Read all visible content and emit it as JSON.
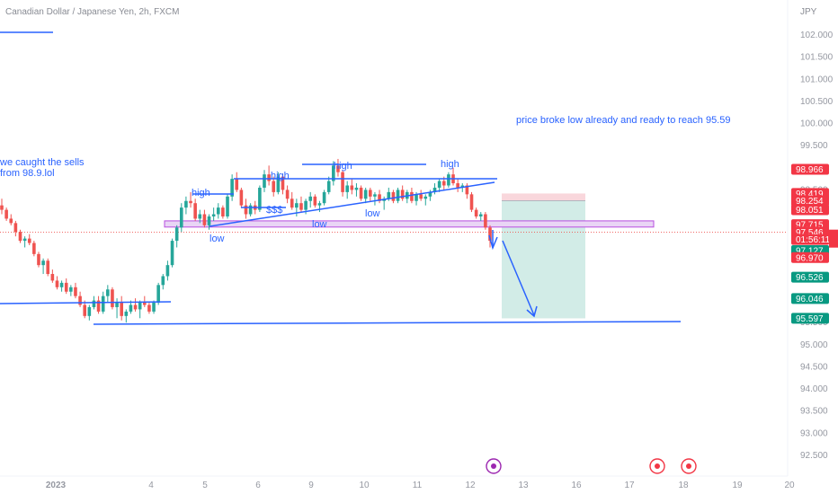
{
  "header": {
    "title": "Canadian Dollar / Japanese Yen, 2h, FXCM",
    "currency": "JPY"
  },
  "chart_data": {
    "type": "candlestick",
    "title": "Canadian Dollar / Japanese Yen, 2h, FXCM",
    "ylabel": "JPY",
    "ylim": [
      92.25,
      102.3
    ],
    "y_ticks": [
      "102.000",
      "101.500",
      "101.000",
      "100.500",
      "100.000",
      "99.500",
      "99.000",
      "98.500",
      "98.000",
      "97.500",
      "97.000",
      "96.500",
      "96.000",
      "95.500",
      "95.000",
      "94.500",
      "94.000",
      "93.500",
      "93.000",
      "92.500"
    ],
    "x_ticks": [
      "2023",
      "4",
      "5",
      "6",
      "9",
      "10",
      "11",
      "12",
      "13",
      "16",
      "17",
      "18",
      "19",
      "20"
    ],
    "grid": false,
    "candles": [
      [
        "00",
        98.15,
        98.3,
        97.95,
        98.05
      ],
      [
        "00",
        98.05,
        98.1,
        97.8,
        97.85
      ],
      [
        "00",
        97.85,
        97.95,
        97.7,
        97.75
      ],
      [
        "00",
        97.75,
        97.8,
        97.45,
        97.55
      ],
      [
        "00",
        97.55,
        97.6,
        97.3,
        97.35
      ],
      [
        "00",
        97.35,
        97.45,
        97.2,
        97.4
      ],
      [
        "00",
        97.4,
        97.5,
        97.25,
        97.3
      ],
      [
        "00",
        97.3,
        97.35,
        97.0,
        97.05
      ],
      [
        "00",
        97.05,
        97.1,
        96.75,
        96.8
      ],
      [
        "00",
        96.8,
        96.95,
        96.6,
        96.9
      ],
      [
        "00",
        96.9,
        96.95,
        96.55,
        96.6
      ],
      [
        "00",
        96.6,
        96.7,
        96.4,
        96.45
      ],
      [
        "00",
        96.45,
        96.55,
        96.25,
        96.3
      ],
      [
        "00",
        96.3,
        96.45,
        96.2,
        96.4
      ],
      [
        "00",
        96.4,
        96.5,
        96.15,
        96.2
      ],
      [
        "00",
        96.2,
        96.35,
        96.1,
        96.3
      ],
      [
        "00",
        96.3,
        96.4,
        96.05,
        96.1
      ],
      [
        "00",
        96.1,
        96.2,
        95.85,
        95.9
      ],
      [
        "00",
        95.9,
        96.0,
        95.6,
        95.65
      ],
      [
        "00",
        95.65,
        95.9,
        95.55,
        95.85
      ],
      [
        "00",
        95.85,
        96.1,
        95.8,
        96.0
      ],
      [
        "00",
        96.0,
        96.1,
        95.7,
        95.75
      ],
      [
        "00",
        95.75,
        96.2,
        95.7,
        96.1
      ],
      [
        "00",
        96.1,
        96.35,
        95.95,
        96.25
      ],
      [
        "00",
        96.25,
        96.3,
        95.8,
        95.85
      ],
      [
        "00",
        95.85,
        96.05,
        95.6,
        95.95
      ],
      [
        "00",
        95.95,
        96.1,
        95.55,
        95.65
      ],
      [
        "00",
        95.65,
        95.8,
        95.5,
        95.75
      ],
      [
        "00",
        95.75,
        96.0,
        95.7,
        95.9
      ],
      [
        "00",
        95.9,
        96.05,
        95.75,
        95.8
      ],
      [
        "00",
        95.8,
        96.0,
        95.6,
        95.95
      ],
      [
        "00",
        95.95,
        96.1,
        95.85,
        95.9
      ],
      [
        "00",
        95.9,
        95.95,
        95.7,
        95.75
      ],
      [
        "00",
        95.75,
        96.0,
        95.7,
        95.95
      ],
      [
        "00",
        95.95,
        96.4,
        95.9,
        96.35
      ],
      [
        "00",
        96.35,
        96.6,
        96.25,
        96.55
      ],
      [
        "00",
        96.55,
        96.9,
        96.45,
        96.8
      ],
      [
        "00",
        96.8,
        97.4,
        96.75,
        97.35
      ],
      [
        "00",
        97.35,
        97.7,
        97.2,
        97.65
      ],
      [
        "00",
        97.65,
        98.2,
        97.55,
        98.1
      ],
      [
        "00",
        98.1,
        98.35,
        97.95,
        98.25
      ],
      [
        "00",
        98.25,
        98.45,
        98.1,
        98.2
      ],
      [
        "00",
        98.2,
        98.3,
        97.8,
        97.85
      ],
      [
        "00",
        97.85,
        98.05,
        97.75,
        97.95
      ],
      [
        "00",
        97.95,
        98.05,
        97.65,
        97.7
      ],
      [
        "00",
        97.7,
        97.95,
        97.6,
        97.9
      ],
      [
        "00",
        97.9,
        98.1,
        97.8,
        97.95
      ],
      [
        "00",
        97.95,
        98.2,
        97.85,
        98.1
      ],
      [
        "00",
        98.1,
        98.15,
        97.85,
        97.9
      ],
      [
        "00",
        97.9,
        98.4,
        97.85,
        98.35
      ],
      [
        "00",
        98.35,
        98.85,
        98.25,
        98.75
      ],
      [
        "00",
        98.75,
        98.9,
        98.45,
        98.5
      ],
      [
        "00",
        98.5,
        98.55,
        98.1,
        98.15
      ],
      [
        "00",
        98.15,
        98.3,
        97.85,
        97.95
      ],
      [
        "00",
        97.95,
        98.2,
        97.9,
        98.15
      ],
      [
        "00",
        98.15,
        98.25,
        97.95,
        98.05
      ],
      [
        "00",
        98.05,
        98.6,
        98.0,
        98.55
      ],
      [
        "00",
        98.55,
        98.95,
        98.45,
        98.85
      ],
      [
        "00",
        98.85,
        99.05,
        98.6,
        98.7
      ],
      [
        "00",
        98.7,
        98.8,
        98.35,
        98.45
      ],
      [
        "00",
        98.45,
        98.9,
        98.4,
        98.8
      ],
      [
        "00",
        98.8,
        98.85,
        98.4,
        98.5
      ],
      [
        "00",
        98.5,
        98.6,
        98.2,
        98.3
      ],
      [
        "00",
        98.3,
        98.45,
        98.05,
        98.1
      ],
      [
        "00",
        98.1,
        98.3,
        97.9,
        98.2
      ],
      [
        "00",
        98.2,
        98.35,
        98.0,
        98.05
      ],
      [
        "00",
        98.05,
        98.3,
        97.95,
        98.25
      ],
      [
        "00",
        98.25,
        98.45,
        98.1,
        98.35
      ],
      [
        "00",
        98.35,
        98.4,
        98.1,
        98.15
      ],
      [
        "00",
        98.15,
        98.25,
        98.0,
        98.2
      ],
      [
        "00",
        98.2,
        98.5,
        98.15,
        98.45
      ],
      [
        "00",
        98.45,
        98.8,
        98.4,
        98.7
      ],
      [
        "00",
        98.7,
        99.15,
        98.6,
        99.05
      ],
      [
        "00",
        99.05,
        99.2,
        98.8,
        98.9
      ],
      [
        "00",
        98.9,
        98.95,
        98.35,
        98.45
      ],
      [
        "00",
        98.45,
        98.7,
        98.3,
        98.6
      ],
      [
        "00",
        98.6,
        98.75,
        98.4,
        98.5
      ],
      [
        "00",
        98.5,
        98.65,
        98.35,
        98.55
      ],
      [
        "00",
        98.55,
        98.6,
        98.25,
        98.3
      ],
      [
        "00",
        98.3,
        98.55,
        98.2,
        98.5
      ],
      [
        "00",
        98.5,
        98.55,
        98.25,
        98.35
      ],
      [
        "00",
        98.35,
        98.45,
        98.15,
        98.4
      ],
      [
        "00",
        98.4,
        98.5,
        98.2,
        98.25
      ],
      [
        "00",
        98.25,
        98.35,
        98.05,
        98.3
      ],
      [
        "00",
        98.3,
        98.55,
        98.25,
        98.45
      ],
      [
        "00",
        98.45,
        98.5,
        98.2,
        98.25
      ],
      [
        "00",
        98.25,
        98.55,
        98.2,
        98.5
      ],
      [
        "00",
        98.5,
        98.6,
        98.25,
        98.3
      ],
      [
        "00",
        98.3,
        98.5,
        98.2,
        98.45
      ],
      [
        "00",
        98.45,
        98.55,
        98.2,
        98.25
      ],
      [
        "00",
        98.25,
        98.45,
        98.15,
        98.4
      ],
      [
        "00",
        98.4,
        98.5,
        98.25,
        98.3
      ],
      [
        "00",
        98.3,
        98.4,
        98.15,
        98.35
      ],
      [
        "00",
        98.35,
        98.5,
        98.25,
        98.45
      ],
      [
        "00",
        98.45,
        98.65,
        98.4,
        98.55
      ],
      [
        "00",
        98.55,
        98.75,
        98.45,
        98.7
      ],
      [
        "00",
        98.7,
        98.8,
        98.5,
        98.6
      ],
      [
        "00",
        98.6,
        98.9,
        98.55,
        98.85
      ],
      [
        "00",
        98.85,
        99.0,
        98.6,
        98.65
      ],
      [
        "00",
        98.65,
        98.75,
        98.45,
        98.55
      ],
      [
        "00",
        98.55,
        98.65,
        98.45,
        98.6
      ],
      [
        "00",
        98.6,
        98.65,
        98.3,
        98.4
      ],
      [
        "00",
        98.4,
        98.45,
        98.0,
        98.05
      ],
      [
        "00",
        98.05,
        98.1,
        97.85,
        97.9
      ],
      [
        "00",
        97.9,
        98.0,
        97.8,
        97.95
      ],
      [
        "00",
        97.95,
        98.0,
        97.6,
        97.65
      ],
      [
        "00",
        97.65,
        97.7,
        97.2,
        97.35
      ]
    ],
    "current_price_badges": [
      {
        "label": "98.966",
        "price": 98.966,
        "kind": "red"
      },
      {
        "label": "98.419",
        "price": 98.419,
        "kind": "red"
      },
      {
        "label": "98.254",
        "price": 98.254,
        "kind": "red"
      },
      {
        "label": "98.051",
        "price": 98.051,
        "kind": "red"
      },
      {
        "label": "97.715",
        "price": 97.715,
        "kind": "red"
      },
      {
        "label": "97.546",
        "price": 97.546,
        "kind": "red"
      },
      {
        "label": "01:56:11",
        "price": 97.38,
        "kind": "red"
      },
      {
        "label": "97.127",
        "price": 97.127,
        "kind": "green"
      },
      {
        "label": "96.970",
        "price": 96.97,
        "kind": "red"
      },
      {
        "label": "96.526",
        "price": 96.526,
        "kind": "green"
      },
      {
        "label": "96.046",
        "price": 96.046,
        "kind": "green"
      },
      {
        "label": "95.597",
        "price": 95.597,
        "kind": "green"
      }
    ],
    "annotations": {
      "note_top": "price broke low already and ready to reach 95.59",
      "note_left_line1": "we caught the sells",
      "note_left_line2": "from 98.9.lol",
      "high1": "high",
      "high2": "high",
      "high3": "high",
      "high4": "high",
      "low1": "low",
      "low2": "low",
      "low3": "low",
      "dollars": "$$$"
    }
  },
  "colors": {
    "up": "#26a69a",
    "down": "#ef5350",
    "line_blue": "#2962ff",
    "zone_purple": "#b84ee0",
    "zone_fill": "#e9d5f5",
    "target_fill": "#d2ece7",
    "stop_fill": "#f9d7dc"
  }
}
